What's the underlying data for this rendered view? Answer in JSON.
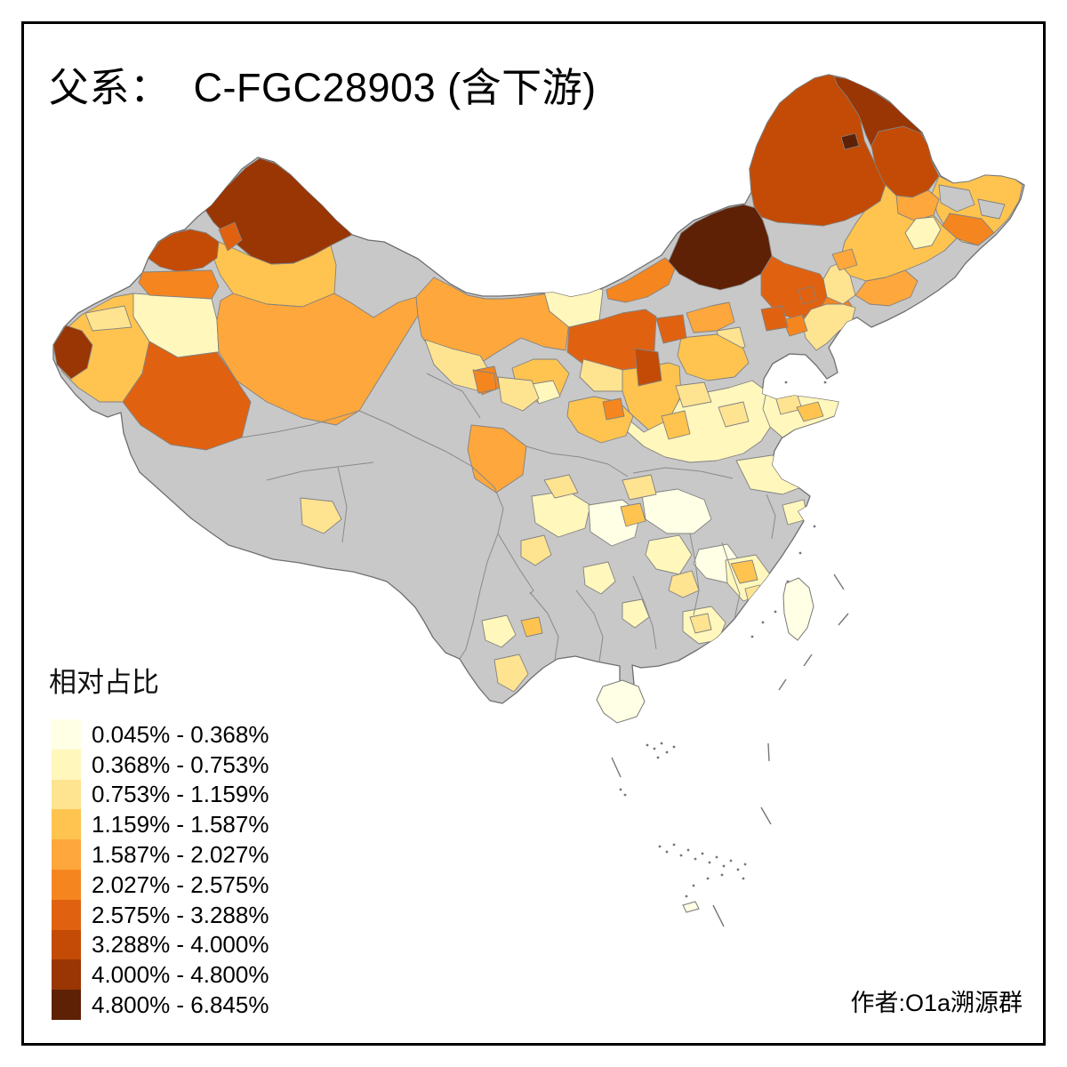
{
  "title": "父系：  C-FGC28903 (含下游)",
  "author_credit": "作者:O1a溯源群",
  "legend": {
    "title": "相对占比",
    "classes": [
      {
        "label": "0.045% - 0.368%",
        "color": "#FFFFE5"
      },
      {
        "label": "0.368% - 0.753%",
        "color": "#FFF7BC"
      },
      {
        "label": "0.753% - 1.159%",
        "color": "#FEE391"
      },
      {
        "label": "1.159% - 1.587%",
        "color": "#FEC44F"
      },
      {
        "label": "1.587% - 2.027%",
        "color": "#FEA73C"
      },
      {
        "label": "2.027% - 2.575%",
        "color": "#F5861F"
      },
      {
        "label": "2.575% - 3.288%",
        "color": "#E06211"
      },
      {
        "label": "3.288% - 4.000%",
        "color": "#C34B05"
      },
      {
        "label": "4.000% - 4.800%",
        "color": "#9A3504"
      },
      {
        "label": "4.800% - 6.845%",
        "color": "#5E2106"
      }
    ]
  },
  "map": {
    "no_data_color": "#C8C8C8",
    "boundary_color": "#828282",
    "background_color": "#FFFFFF",
    "frame_color": "#000000"
  }
}
